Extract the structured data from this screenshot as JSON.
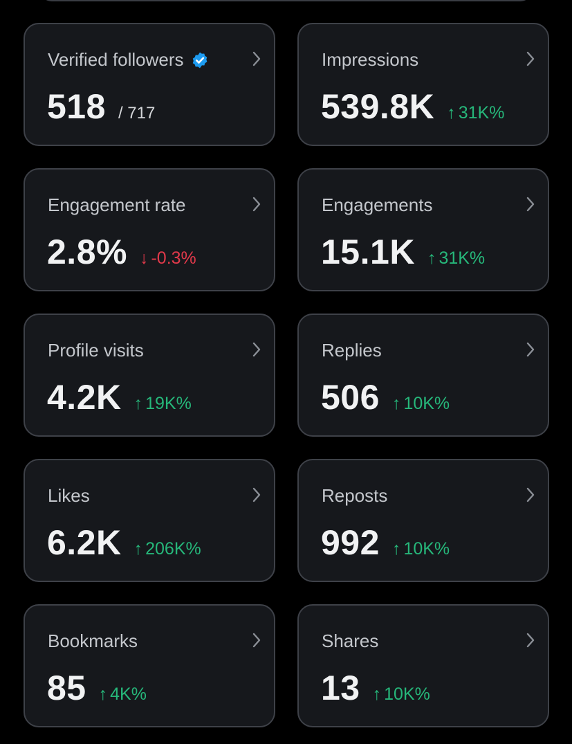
{
  "colors": {
    "background": "#000000",
    "card": "#16181c",
    "border": "#3e4148",
    "up": "#26b77a",
    "down": "#e0394a",
    "verified": "#1d9bf0"
  },
  "cards": [
    {
      "label": "Verified followers",
      "value": "518",
      "sub": "/ 717",
      "verified_icon": "verified-badge-icon"
    },
    {
      "label": "Impressions",
      "value": "539.8K",
      "change": "31K%",
      "direction": "up"
    },
    {
      "label": "Engagement rate",
      "value": "2.8%",
      "change": "-0.3%",
      "direction": "down"
    },
    {
      "label": "Engagements",
      "value": "15.1K",
      "change": "31K%",
      "direction": "up"
    },
    {
      "label": "Profile visits",
      "value": "4.2K",
      "change": "19K%",
      "direction": "up"
    },
    {
      "label": "Replies",
      "value": "506",
      "change": "10K%",
      "direction": "up"
    },
    {
      "label": "Likes",
      "value": "6.2K",
      "change": "206K%",
      "direction": "up"
    },
    {
      "label": "Reposts",
      "value": "992",
      "change": "10K%",
      "direction": "up"
    },
    {
      "label": "Bookmarks",
      "value": "85",
      "change": "4K%",
      "direction": "up"
    },
    {
      "label": "Shares",
      "value": "13",
      "change": "10K%",
      "direction": "up"
    }
  ]
}
